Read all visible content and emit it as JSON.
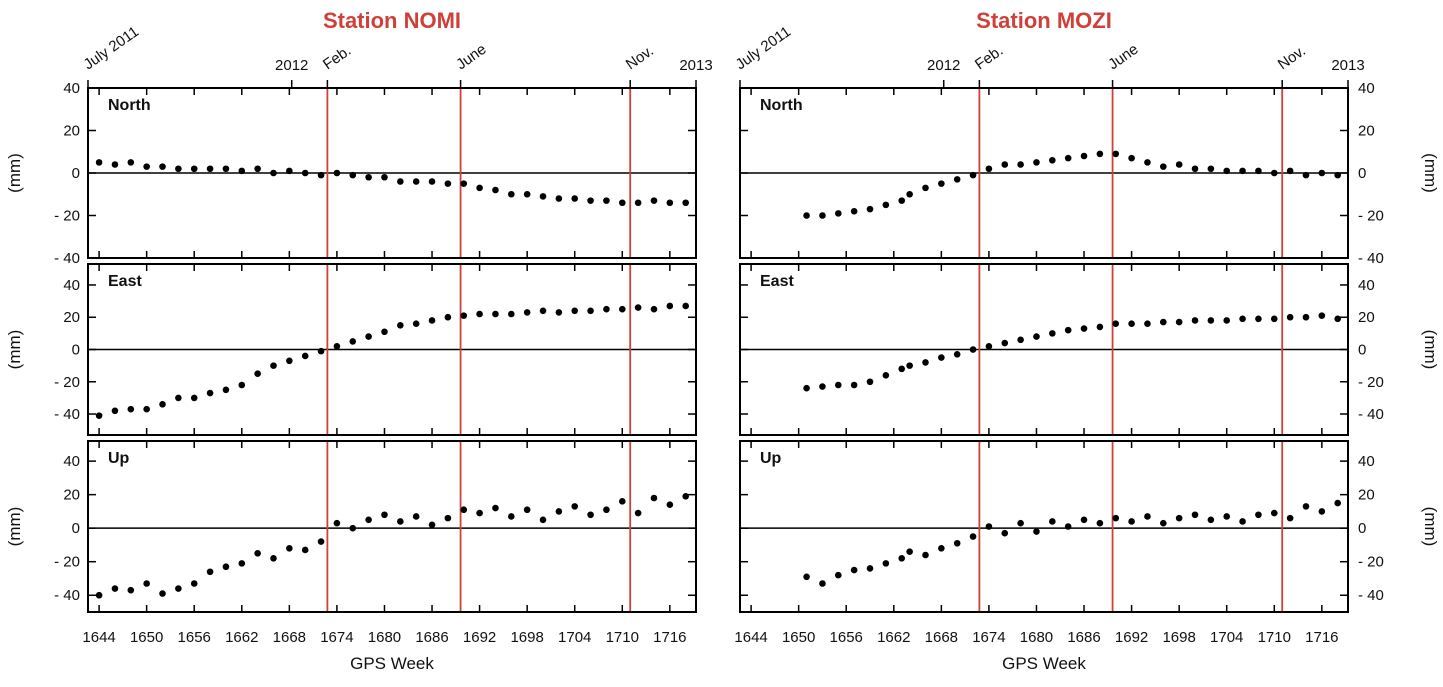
{
  "chart_data": [
    {
      "type": "scatter",
      "title": "Station NOMI",
      "x_label": "GPS Week",
      "axis_side": "left",
      "xlim": [
        1642.6,
        1719.3
      ],
      "xticks": [
        1644,
        1650,
        1656,
        1662,
        1668,
        1674,
        1680,
        1686,
        1692,
        1698,
        1704,
        1710,
        1716
      ],
      "top_ticks": [
        {
          "value": 1642.6,
          "label": "July 2011",
          "rotated": true
        },
        {
          "value": 1668.3,
          "label": "2012",
          "rotated": false
        },
        {
          "value": 1672.8,
          "label": "Feb.",
          "rotated": true
        },
        {
          "value": 1689.6,
          "label": "June",
          "rotated": true
        },
        {
          "value": 1711,
          "label": "Nov.",
          "rotated": true
        },
        {
          "value": 1719.3,
          "label": "2013",
          "rotated": false
        }
      ],
      "event_lines": [
        1672.8,
        1689.6,
        1711
      ],
      "event_color": "#d0403a",
      "color": "#000000",
      "panels": [
        {
          "label": "North",
          "y_label": "(mm)",
          "ylim": [
            -40,
            40
          ],
          "yticks": [
            {
              "value": -40,
              "label": "- 40"
            },
            {
              "value": -20,
              "label": "- 20"
            },
            0,
            20,
            40
          ],
          "x": [
            1644,
            1646,
            1648,
            1650,
            1652,
            1654,
            1656,
            1658,
            1660,
            1662,
            1664,
            1666,
            1668,
            1670,
            1672,
            1674,
            1676,
            1678,
            1680,
            1682,
            1684,
            1686,
            1688,
            1690,
            1692,
            1694,
            1696,
            1698,
            1700,
            1702,
            1704,
            1706,
            1708,
            1710,
            1712,
            1714,
            1716,
            1718
          ],
          "values": [
            5,
            4,
            5,
            3,
            3,
            2,
            2,
            2,
            2,
            1,
            2,
            0,
            1,
            0,
            -1,
            0,
            -1,
            -2,
            -2,
            -4,
            -4,
            -4,
            -5,
            -5,
            -7,
            -8,
            -10,
            -10,
            -11,
            -12,
            -12,
            -13,
            -13,
            -14,
            -14,
            -13,
            -14,
            -14
          ]
        },
        {
          "label": "East",
          "y_label": "(mm)",
          "ylim": [
            -53,
            53
          ],
          "yticks": [
            {
              "value": -40,
              "label": "- 40"
            },
            {
              "value": -20,
              "label": "- 20"
            },
            0,
            20,
            40
          ],
          "x": [
            1644,
            1646,
            1648,
            1650,
            1652,
            1654,
            1656,
            1658,
            1660,
            1662,
            1664,
            1666,
            1668,
            1670,
            1672,
            1674,
            1676,
            1678,
            1680,
            1682,
            1684,
            1686,
            1688,
            1690,
            1692,
            1694,
            1696,
            1698,
            1700,
            1702,
            1704,
            1706,
            1708,
            1710,
            1712,
            1714,
            1716,
            1718
          ],
          "values": [
            -41,
            -38,
            -37,
            -37,
            -34,
            -30,
            -30,
            -27,
            -25,
            -22,
            -15,
            -10,
            -7,
            -4,
            -1,
            2,
            5,
            8,
            11,
            15,
            16,
            18,
            20,
            21,
            22,
            22,
            22,
            23,
            24,
            23,
            24,
            24,
            25,
            25,
            26,
            25,
            27,
            27
          ]
        },
        {
          "label": "Up",
          "y_label": "(mm)",
          "ylim": [
            -50,
            52
          ],
          "yticks": [
            {
              "value": -40,
              "label": "- 40"
            },
            {
              "value": -20,
              "label": "- 20"
            },
            0,
            20,
            40
          ],
          "x": [
            1644,
            1646,
            1648,
            1650,
            1652,
            1654,
            1656,
            1658,
            1660,
            1662,
            1664,
            1666,
            1668,
            1670,
            1672,
            1674,
            1676,
            1678,
            1680,
            1682,
            1684,
            1686,
            1688,
            1690,
            1692,
            1694,
            1696,
            1698,
            1700,
            1702,
            1704,
            1706,
            1708,
            1710,
            1712,
            1714,
            1716,
            1718
          ],
          "values": [
            -40,
            -36,
            -37,
            -33,
            -39,
            -36,
            -33,
            -26,
            -23,
            -21,
            -15,
            -18,
            -12,
            -13,
            -8,
            3,
            0,
            5,
            8,
            4,
            7,
            2,
            6,
            11,
            9,
            12,
            7,
            11,
            5,
            10,
            13,
            8,
            11,
            16,
            9,
            18,
            14,
            19
          ]
        }
      ]
    },
    {
      "type": "scatter",
      "title": "Station MOZI",
      "x_label": "GPS Week",
      "axis_side": "right",
      "xlim": [
        1642.6,
        1719.3
      ],
      "xticks": [
        1644,
        1650,
        1656,
        1662,
        1668,
        1674,
        1680,
        1686,
        1692,
        1698,
        1704,
        1710,
        1716
      ],
      "top_ticks": [
        {
          "value": 1642.6,
          "label": "July 2011",
          "rotated": true
        },
        {
          "value": 1668.3,
          "label": "2012",
          "rotated": false
        },
        {
          "value": 1672.8,
          "label": "Feb.",
          "rotated": true
        },
        {
          "value": 1689.6,
          "label": "June",
          "rotated": true
        },
        {
          "value": 1711,
          "label": "Nov.",
          "rotated": true
        },
        {
          "value": 1719.3,
          "label": "2013",
          "rotated": false
        }
      ],
      "event_lines": [
        1672.8,
        1689.6,
        1711
      ],
      "event_color": "#d0403a",
      "color": "#000000",
      "panels": [
        {
          "label": "North",
          "y_label": "(mm)",
          "ylim": [
            -40,
            40
          ],
          "yticks": [
            {
              "value": -40,
              "label": "- 40"
            },
            {
              "value": -20,
              "label": "- 20"
            },
            0,
            20,
            40
          ],
          "x": [
            1651,
            1653,
            1655,
            1657,
            1659,
            1661,
            1663,
            1664,
            1666,
            1668,
            1670,
            1672,
            1674,
            1676,
            1678,
            1680,
            1682,
            1684,
            1686,
            1688,
            1690,
            1692,
            1694,
            1696,
            1698,
            1700,
            1702,
            1704,
            1706,
            1708,
            1710,
            1712,
            1714,
            1716,
            1718
          ],
          "values": [
            -20,
            -20,
            -19,
            -18,
            -17,
            -15,
            -13,
            -10,
            -7,
            -5,
            -3,
            -1,
            2,
            4,
            4,
            5,
            6,
            7,
            8,
            9,
            9,
            7,
            5,
            3,
            4,
            2,
            2,
            1,
            1,
            1,
            0,
            1,
            -1,
            0,
            -1
          ]
        },
        {
          "label": "East",
          "y_label": "(mm)",
          "ylim": [
            -53,
            53
          ],
          "yticks": [
            {
              "value": -40,
              "label": "- 40"
            },
            {
              "value": -20,
              "label": "- 20"
            },
            0,
            20,
            40
          ],
          "x": [
            1651,
            1653,
            1655,
            1657,
            1659,
            1661,
            1663,
            1664,
            1666,
            1668,
            1670,
            1672,
            1674,
            1676,
            1678,
            1680,
            1682,
            1684,
            1686,
            1688,
            1690,
            1692,
            1694,
            1696,
            1698,
            1700,
            1702,
            1704,
            1706,
            1708,
            1710,
            1712,
            1714,
            1716,
            1718
          ],
          "values": [
            -24,
            -23,
            -22,
            -22,
            -20,
            -16,
            -12,
            -10,
            -8,
            -5,
            -3,
            0,
            2,
            4,
            6,
            8,
            10,
            12,
            13,
            14,
            16,
            16,
            16,
            17,
            17,
            18,
            18,
            18,
            19,
            19,
            19,
            20,
            20,
            21,
            19
          ]
        },
        {
          "label": "Up",
          "y_label": "(mm)",
          "ylim": [
            -50,
            52
          ],
          "yticks": [
            {
              "value": -40,
              "label": "- 40"
            },
            {
              "value": -20,
              "label": "- 20"
            },
            0,
            20,
            40
          ],
          "x": [
            1651,
            1653,
            1655,
            1657,
            1659,
            1661,
            1663,
            1664,
            1666,
            1668,
            1670,
            1672,
            1674,
            1676,
            1678,
            1680,
            1682,
            1684,
            1686,
            1688,
            1690,
            1692,
            1694,
            1696,
            1698,
            1700,
            1702,
            1704,
            1706,
            1708,
            1710,
            1712,
            1714,
            1716,
            1718
          ],
          "values": [
            -29,
            -33,
            -28,
            -25,
            -24,
            -21,
            -18,
            -14,
            -16,
            -12,
            -9,
            -5,
            1,
            -3,
            3,
            -2,
            4,
            1,
            5,
            3,
            6,
            4,
            7,
            3,
            6,
            8,
            5,
            7,
            4,
            8,
            9,
            6,
            13,
            10,
            15
          ]
        }
      ]
    }
  ]
}
